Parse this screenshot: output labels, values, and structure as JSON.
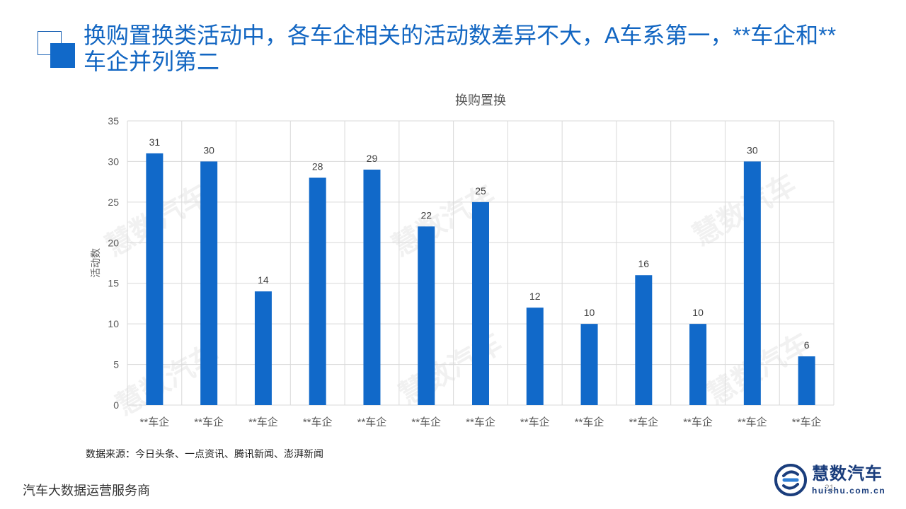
{
  "slide": {
    "title": "换购置换类活动中，各车企相关的活动数差异不大，A车系第一，**车企和**车企并列第二",
    "source": "数据来源：今日头条、一点资讯、腾讯新闻、澎湃新闻",
    "footer_left": "汽车大数据运营服务商",
    "page_number": "21"
  },
  "logo": {
    "name": "慧数汽车",
    "url": "huishu.com.cn"
  },
  "watermark": {
    "text": "慧数汽车"
  },
  "colors": {
    "title": "#1266c2",
    "bar": "#1169c9",
    "grid": "#d9d9d9",
    "axis_text": "#595959",
    "logo": "#1a3d7c"
  },
  "chart_data": {
    "type": "bar",
    "title": "换购置换",
    "xlabel": "",
    "ylabel": "活动数",
    "ylim": [
      0,
      35
    ],
    "yticks": [
      0,
      5,
      10,
      15,
      20,
      25,
      30,
      35
    ],
    "categories": [
      "**车企",
      "**车企",
      "**车企",
      "**车企",
      "**车企",
      "**车企",
      "**车企",
      "**车企",
      "**车企",
      "**车企",
      "**车企",
      "**车企",
      "**车企"
    ],
    "values": [
      31,
      30,
      14,
      28,
      29,
      22,
      25,
      12,
      10,
      16,
      10,
      30,
      6
    ],
    "data_labels": true,
    "grid": true,
    "legend": "none"
  }
}
